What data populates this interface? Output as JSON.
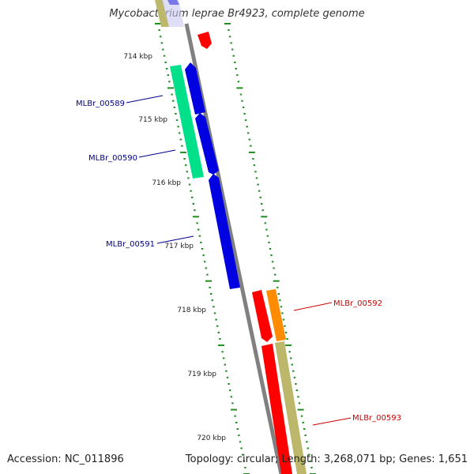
{
  "title": "Mycobacterium leprae Br4923, complete genome",
  "footer": {
    "accession": "Accession: NC_011896",
    "stats": "Topology: circular; Length: 3,268,071 bp; Genes: 1,651"
  },
  "kbp_ticks": [
    "714 kbp",
    "715 kbp",
    "716 kbp",
    "717 kbp",
    "718 kbp",
    "719 kbp",
    "720 kbp"
  ],
  "genes": [
    {
      "id": "MLBr_00589",
      "strand": "forward",
      "color": "#00e08a"
    },
    {
      "id": "MLBr_00590",
      "strand": "forward",
      "color": "#0000e0"
    },
    {
      "id": "MLBr_00591",
      "strand": "forward",
      "color": "#0000e0"
    },
    {
      "id": "MLBr_00592",
      "strand": "reverse",
      "color": "#ff0000"
    },
    {
      "id": "MLBr_00593",
      "strand": "reverse",
      "color": "#ff0000"
    }
  ],
  "colors": {
    "backbone": "#808080",
    "tick": "#228b22",
    "forward_label": "#00008b",
    "reverse_label": "#cc0000",
    "cds_blue": "#0000e0",
    "cds_green": "#00e08a",
    "cds_red": "#ff0000",
    "cds_orange": "#ff8c00",
    "khaki": "#bdb76b"
  }
}
